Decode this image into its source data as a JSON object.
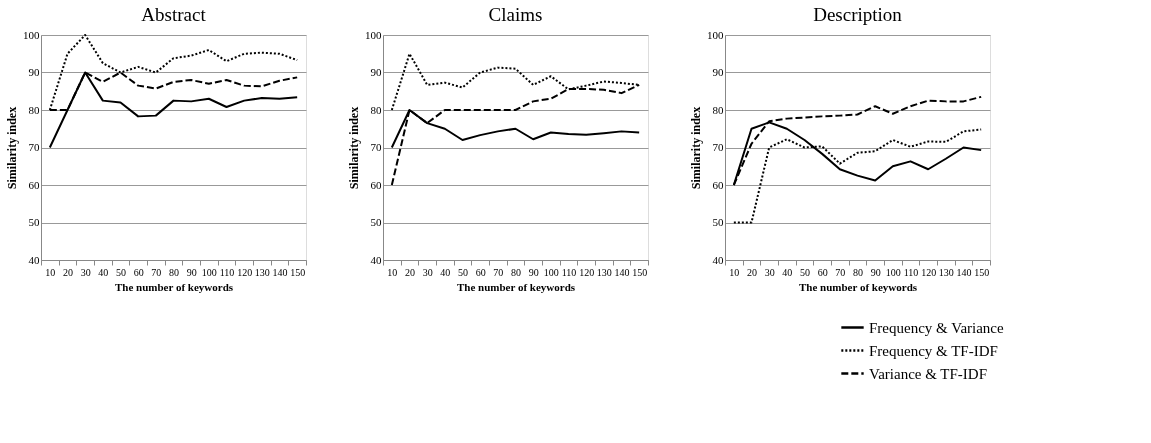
{
  "chart_data": [
    {
      "type": "line",
      "title": "Abstract",
      "xlabel": "The number of keywords",
      "ylabel": "Similarity index",
      "categories": [
        "10",
        "20",
        "30",
        "40",
        "50",
        "60",
        "70",
        "80",
        "90",
        "100",
        "110",
        "120",
        "130",
        "140",
        "150"
      ],
      "ylim": [
        40,
        100
      ],
      "yticks": [
        40,
        50,
        60,
        70,
        80,
        90,
        100
      ],
      "grid": "y",
      "series": [
        {
          "color": "#000000",
          "line_style": "solid",
          "values": [
            70,
            80,
            90,
            82.5,
            82,
            78.3,
            78.5,
            82.5,
            82.3,
            83,
            80.8,
            82.5,
            83.2,
            83,
            83.4
          ]
        },
        {
          "color": "#000000",
          "line_style": "dotted",
          "values": [
            80,
            95,
            100,
            92.5,
            90,
            91.5,
            90,
            93.8,
            94.5,
            96,
            93,
            95,
            95.3,
            95,
            93.3
          ]
        },
        {
          "color": "#000000",
          "line_style": "dashed",
          "values": [
            80,
            80,
            90,
            87.5,
            90,
            86.5,
            85.7,
            87.5,
            88,
            87,
            88,
            86.5,
            86.3,
            87.8,
            88.7
          ]
        }
      ]
    },
    {
      "type": "line",
      "title": "Claims",
      "xlabel": "The number of keywords",
      "ylabel": "Similarity index",
      "categories": [
        "10",
        "20",
        "30",
        "40",
        "50",
        "60",
        "70",
        "80",
        "90",
        "100",
        "110",
        "120",
        "130",
        "140",
        "150"
      ],
      "ylim": [
        40,
        100
      ],
      "yticks": [
        40,
        50,
        60,
        70,
        80,
        90,
        100
      ],
      "grid": "y",
      "series": [
        {
          "color": "#000000",
          "line_style": "solid",
          "values": [
            70,
            80,
            76.5,
            75,
            72,
            73.3,
            74.3,
            75,
            72.2,
            74,
            73.6,
            73.4,
            73.8,
            74.3,
            74
          ]
        },
        {
          "color": "#000000",
          "line_style": "dotted",
          "values": [
            80,
            95,
            86.7,
            87.3,
            86,
            90,
            91.3,
            91,
            86.7,
            89,
            85.5,
            86.5,
            87.6,
            87.2,
            86.7
          ]
        },
        {
          "color": "#000000",
          "line_style": "dashed",
          "values": [
            60,
            80,
            76.5,
            80,
            80,
            80,
            80,
            80,
            82.3,
            83,
            85.6,
            85.6,
            85.4,
            84.5,
            86.7
          ]
        }
      ]
    },
    {
      "type": "line",
      "title": "Description",
      "xlabel": "The number of keywords",
      "ylabel": "Similarity index",
      "categories": [
        "10",
        "20",
        "30",
        "40",
        "50",
        "60",
        "70",
        "80",
        "90",
        "100",
        "110",
        "120",
        "130",
        "140",
        "150"
      ],
      "ylim": [
        40,
        100
      ],
      "yticks": [
        40,
        50,
        60,
        70,
        80,
        90,
        100
      ],
      "grid": "y",
      "legend": "bottom right",
      "series": [
        {
          "name": "Frequency & Variance",
          "color": "#000000",
          "line_style": "solid",
          "values": [
            60,
            75,
            76.7,
            75,
            72,
            68.3,
            64.2,
            62.5,
            61.2,
            65,
            66.3,
            64.2,
            67,
            70,
            69.3
          ]
        },
        {
          "name": "Frequency & TF-IDF",
          "color": "#000000",
          "line_style": "dotted",
          "values": [
            50,
            50,
            70,
            72.2,
            70,
            70.3,
            65.7,
            68.6,
            69,
            72,
            70.2,
            71.6,
            71.5,
            74.3,
            74.8
          ]
        },
        {
          "name": "Variance & TF-IDF",
          "color": "#000000",
          "line_style": "dashed",
          "values": [
            60,
            71,
            77,
            77.7,
            78,
            78.3,
            78.5,
            78.8,
            81,
            79,
            81,
            82.5,
            82.3,
            82.3,
            83.5
          ]
        }
      ]
    }
  ]
}
